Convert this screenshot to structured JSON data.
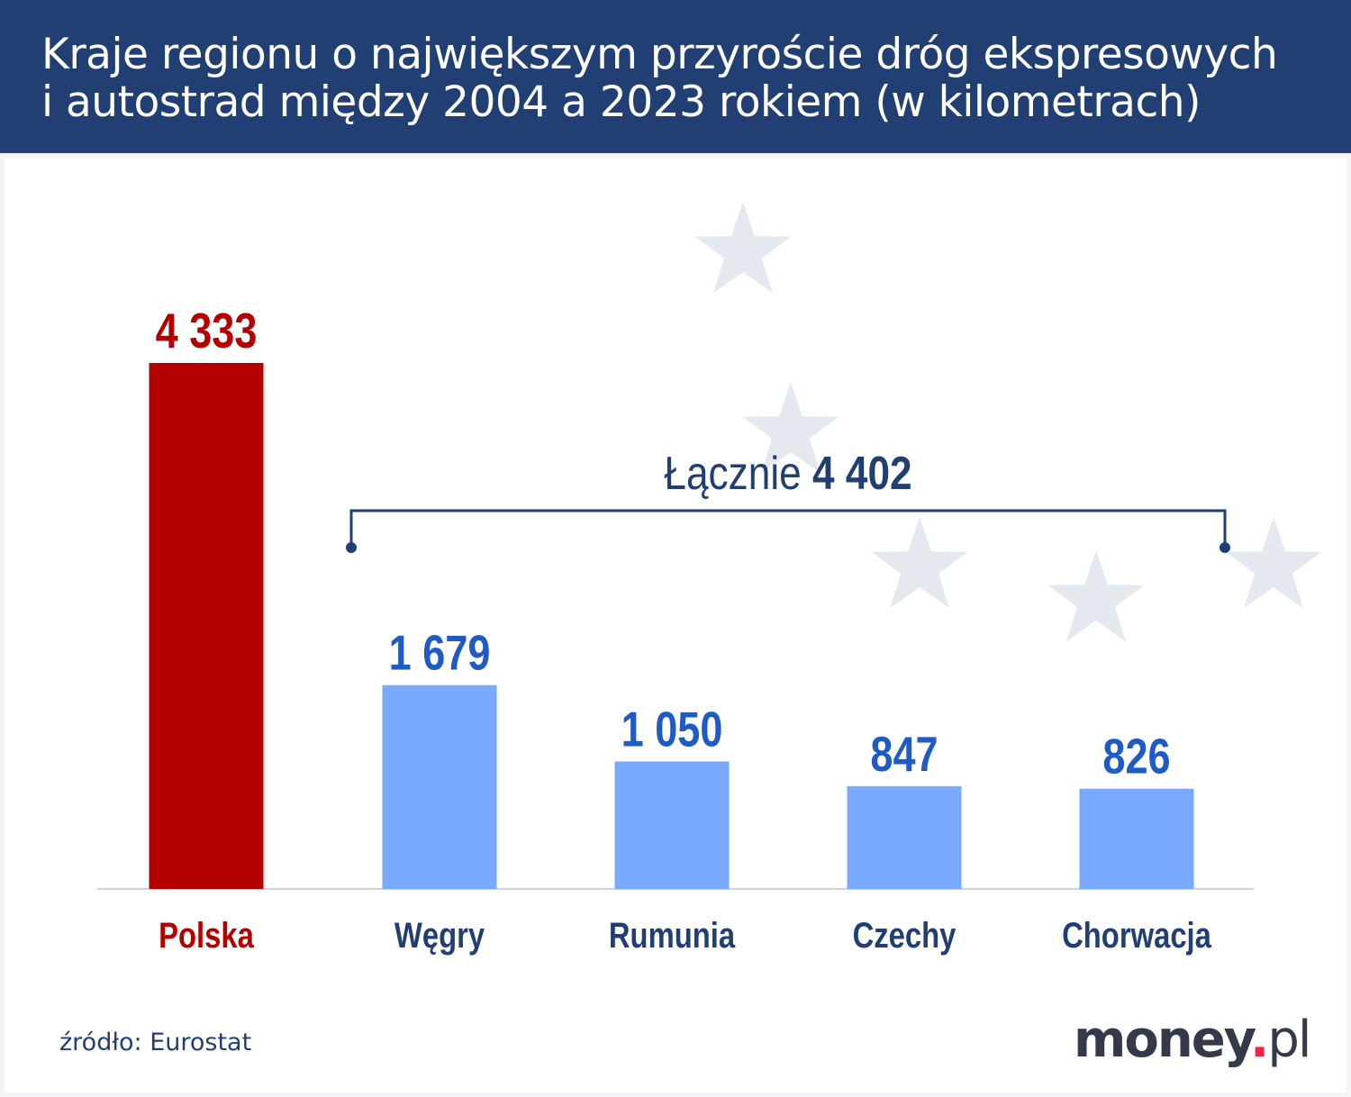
{
  "header": {
    "title_line1": "Kraje regionu o największym przyroście dróg ekspresowych",
    "title_line2": "i autostrad między 2004 a 2023 rokiem (w kilometrach)"
  },
  "chart_data": {
    "type": "bar",
    "title": "Kraje regionu o największym przyroście dróg ekspresowych i autostrad między 2004 a 2023 rokiem (w kilometrach)",
    "categories": [
      "Polska",
      "Węgry",
      "Rumunia",
      "Czechy",
      "Chorwacja"
    ],
    "values": [
      4333,
      1679,
      1050,
      847,
      826
    ],
    "value_labels": [
      "4 333",
      "1 679",
      "1 050",
      "847",
      "826"
    ],
    "ylim": [
      0,
      4333
    ],
    "grid": false,
    "annotation": {
      "prefix": "Łącznie",
      "value": "4 402",
      "spans": [
        "Węgry",
        "Rumunia",
        "Czechy",
        "Chorwacja"
      ]
    },
    "colors": {
      "highlight": "#b50000",
      "bar": "#7aaaff",
      "value_label": "#1e5bc6",
      "category_label": "#213f73",
      "header": "#213f73",
      "star": "#e4e8ef"
    }
  },
  "footer": {
    "source": "źródło: Eurostat",
    "logo_main": "money",
    "logo_dot": ".",
    "logo_tld": "pl"
  }
}
